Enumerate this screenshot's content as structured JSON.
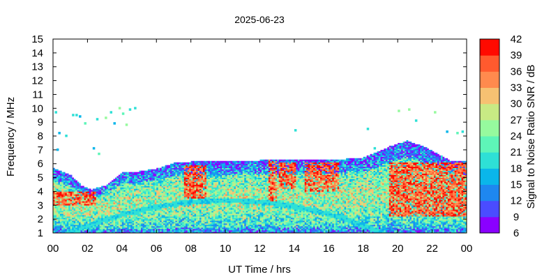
{
  "chart_data": {
    "type": "heatmap",
    "title": "2025-06-23",
    "xlabel": "UT Time / hrs",
    "ylabel": "Frequency / MHz",
    "colorbar_label": "Signal to Noise Ratio SNR / dB",
    "xlim": [
      0,
      24
    ],
    "ylim": [
      1,
      15
    ],
    "x_ticks": [
      "00",
      "02",
      "04",
      "06",
      "08",
      "10",
      "12",
      "14",
      "16",
      "18",
      "20",
      "22",
      "00"
    ],
    "y_ticks": [
      "1",
      "2",
      "3",
      "4",
      "5",
      "6",
      "7",
      "8",
      "9",
      "10",
      "11",
      "12",
      "13",
      "14",
      "15"
    ],
    "colorbar_ticks": [
      "6",
      "9",
      "12",
      "15",
      "18",
      "21",
      "24",
      "27",
      "30",
      "33",
      "36",
      "39",
      "42"
    ],
    "snr_range": [
      6,
      42
    ],
    "colorbar_colors": [
      "#8a00ff",
      "#4a4cff",
      "#1e87f0",
      "#0ab6ea",
      "#2ee0d6",
      "#5ef5b8",
      "#96fa9e",
      "#c8ea84",
      "#f6c172",
      "#ff8a4e",
      "#ff5a2e",
      "#ff0a00"
    ],
    "upper_edge_mhz": [
      [
        0.0,
        5.6
      ],
      [
        1.0,
        5.1
      ],
      [
        1.6,
        4.4
      ],
      [
        2.2,
        4.1
      ],
      [
        3.0,
        4.4
      ],
      [
        4.0,
        5.3
      ],
      [
        5.0,
        5.4
      ],
      [
        6.0,
        5.6
      ],
      [
        7.0,
        6.0
      ],
      [
        8.0,
        6.1
      ],
      [
        10.0,
        6.1
      ],
      [
        12.0,
        6.2
      ],
      [
        14.0,
        6.2
      ],
      [
        16.0,
        6.2
      ],
      [
        18.0,
        6.4
      ],
      [
        19.5,
        7.2
      ],
      [
        20.5,
        7.6
      ],
      [
        21.5,
        7.2
      ],
      [
        23.0,
        6.2
      ],
      [
        24.0,
        6.1
      ]
    ],
    "high_snr_regions": [
      {
        "t": [
          7.5,
          8.8
        ],
        "f": [
          3.5,
          5.8
        ]
      },
      {
        "t": [
          12.4,
          12.9
        ],
        "f": [
          3.0,
          7.9
        ]
      },
      {
        "t": [
          13.0,
          14.0
        ],
        "f": [
          4.2,
          6.0
        ]
      },
      {
        "t": [
          14.5,
          16.5
        ],
        "f": [
          4.0,
          6.0
        ]
      },
      {
        "t": [
          19.5,
          24.0
        ],
        "f": [
          2.2,
          6.0
        ]
      },
      {
        "t": [
          0.0,
          2.5
        ],
        "f": [
          3.0,
          4.0
        ]
      }
    ],
    "sporadic_points": [
      [
        0.1,
        9.7
      ],
      [
        0.2,
        7.0
      ],
      [
        0.3,
        8.2
      ],
      [
        0.7,
        8.0
      ],
      [
        1.1,
        9.5
      ],
      [
        1.3,
        9.5
      ],
      [
        1.5,
        9.4
      ],
      [
        1.8,
        8.9
      ],
      [
        2.3,
        7.1
      ],
      [
        2.5,
        9.2
      ],
      [
        3.0,
        9.3
      ],
      [
        3.3,
        9.7
      ],
      [
        3.5,
        8.9
      ],
      [
        3.8,
        10.0
      ],
      [
        4.0,
        9.6
      ],
      [
        4.2,
        8.8
      ],
      [
        4.4,
        9.9
      ],
      [
        4.7,
        10.0
      ],
      [
        2.6,
        6.7
      ],
      [
        14.0,
        8.4
      ],
      [
        18.2,
        8.5
      ],
      [
        18.6,
        7.1
      ],
      [
        20.0,
        9.8
      ],
      [
        20.6,
        9.9
      ],
      [
        21.0,
        9.1
      ],
      [
        22.1,
        9.7
      ],
      [
        22.8,
        8.3
      ],
      [
        23.4,
        8.2
      ],
      [
        23.7,
        8.3
      ]
    ]
  }
}
